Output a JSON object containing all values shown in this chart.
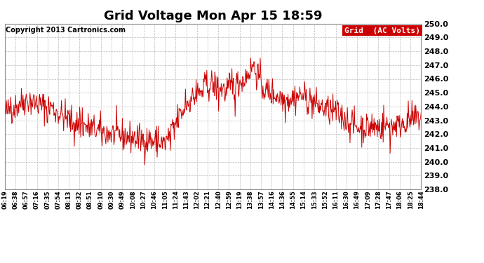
{
  "title": "Grid Voltage Mon Apr 15 18:59",
  "copyright": "Copyright 2013 Cartronics.com",
  "legend_label": "Grid  (AC Volts)",
  "line_color": "#cc0000",
  "legend_bg": "#cc0000",
  "legend_text_color": "#ffffff",
  "bg_color": "#ffffff",
  "plot_bg_color": "#ffffff",
  "grid_color": "#bbbbbb",
  "ylim": [
    238.0,
    250.0
  ],
  "yticks": [
    238.0,
    239.0,
    240.0,
    241.0,
    242.0,
    243.0,
    244.0,
    245.0,
    246.0,
    247.0,
    248.0,
    249.0,
    250.0
  ],
  "xtick_labels": [
    "06:19",
    "06:38",
    "06:57",
    "07:16",
    "07:35",
    "07:54",
    "08:13",
    "08:32",
    "08:51",
    "09:10",
    "09:30",
    "09:49",
    "10:08",
    "10:27",
    "10:46",
    "11:05",
    "11:24",
    "11:43",
    "12:02",
    "12:21",
    "12:40",
    "12:59",
    "13:19",
    "13:38",
    "13:57",
    "14:16",
    "14:36",
    "14:55",
    "15:14",
    "15:33",
    "15:52",
    "16:11",
    "16:30",
    "16:49",
    "17:09",
    "17:28",
    "17:47",
    "18:06",
    "18:25",
    "18:44"
  ],
  "seed": 42,
  "n_points": 780,
  "title_fontsize": 13,
  "ytick_fontsize": 8,
  "xtick_fontsize": 6,
  "copyright_fontsize": 7,
  "legend_fontsize": 8
}
